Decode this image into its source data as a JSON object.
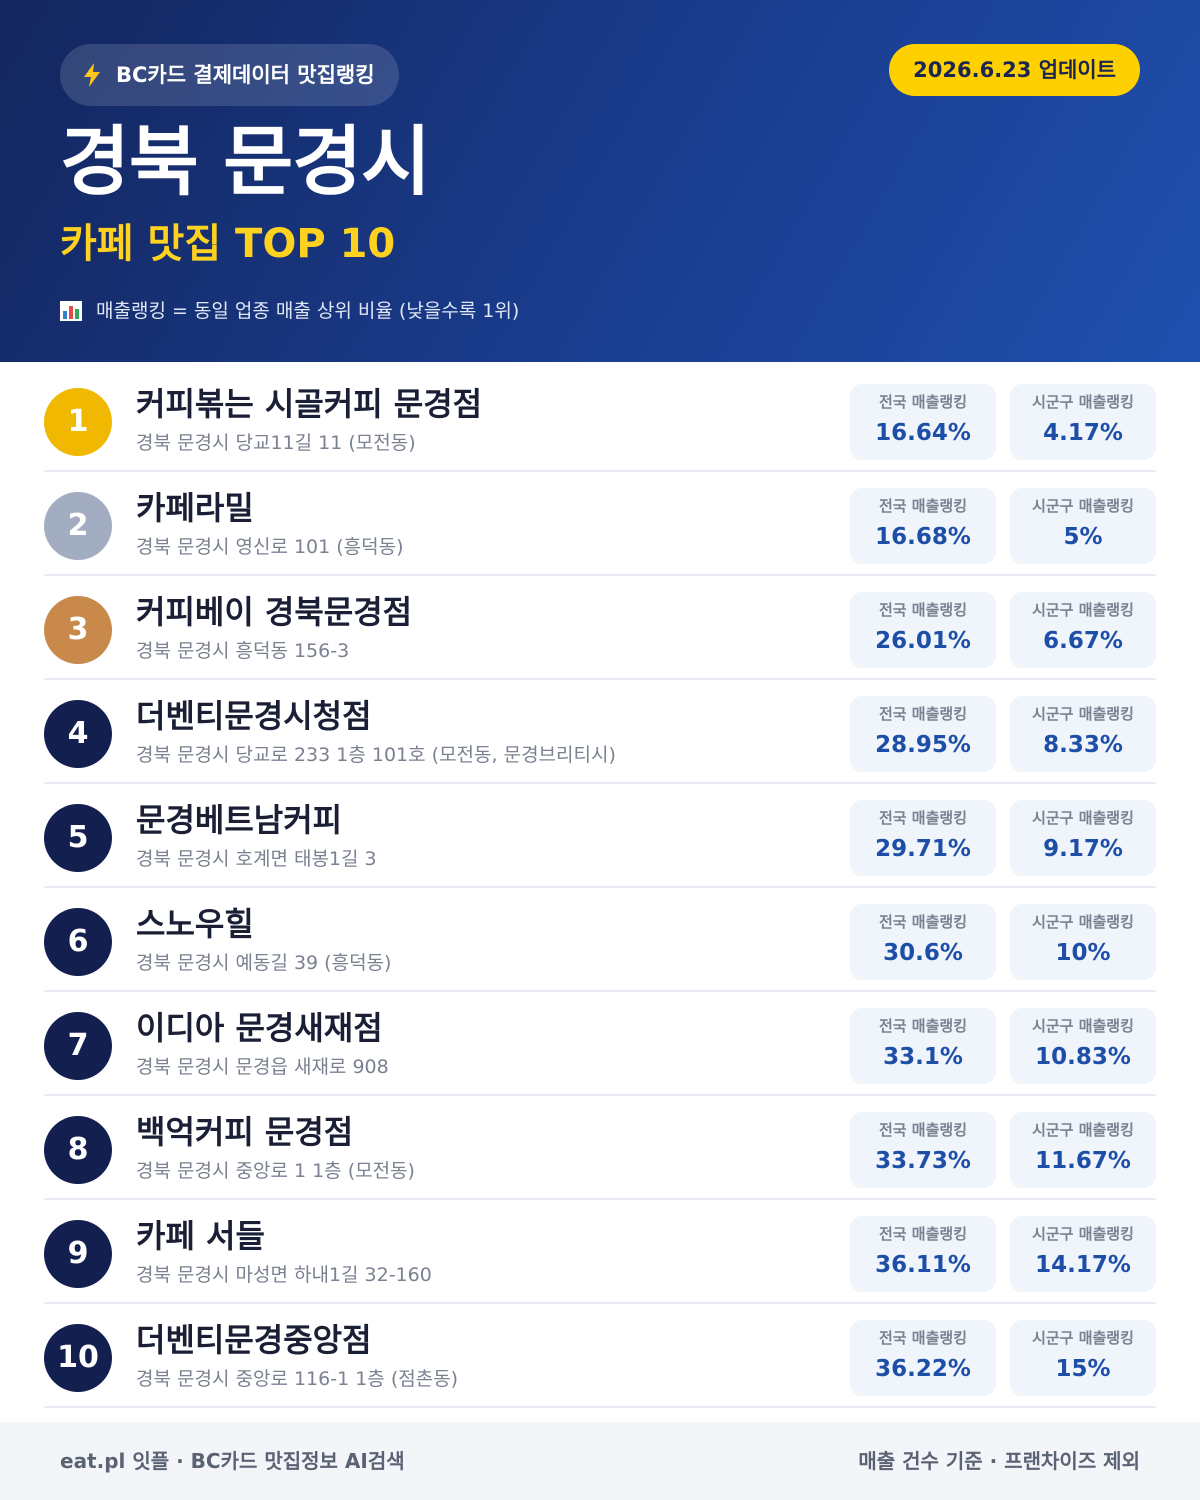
{
  "header": {
    "badge": "BC카드 결제데이터 맛집랭킹",
    "date": "2026.6.23 업데이트",
    "title": "경북 문경시",
    "subtitle": "카페 맛집 TOP 10",
    "note": "매출랭킹 = 동일 업종 매출 상위 비율 (낮을수록 1위)"
  },
  "labels": {
    "national": "전국 매출랭킹",
    "local": "시군구 매출랭킹"
  },
  "items": [
    {
      "rank": 1,
      "name": "커피볶는 시골커피 문경점",
      "address": "경북 문경시 당교11길 11 (모전동)",
      "national": "16.64%",
      "local": "4.17%"
    },
    {
      "rank": 2,
      "name": "카페라밀",
      "address": "경북 문경시 영신로 101 (흥덕동)",
      "national": "16.68%",
      "local": "5%"
    },
    {
      "rank": 3,
      "name": "커피베이 경북문경점",
      "address": "경북 문경시 흥덕동 156-3",
      "national": "26.01%",
      "local": "6.67%"
    },
    {
      "rank": 4,
      "name": "더벤티문경시청점",
      "address": "경북 문경시 당교로 233 1층 101호 (모전동, 문경브리티시)",
      "national": "28.95%",
      "local": "8.33%"
    },
    {
      "rank": 5,
      "name": "문경베트남커피",
      "address": "경북 문경시 호계면 태봉1길 3",
      "national": "29.71%",
      "local": "9.17%"
    },
    {
      "rank": 6,
      "name": "스노우힐",
      "address": "경북 문경시 예동길 39 (흥덕동)",
      "national": "30.6%",
      "local": "10%"
    },
    {
      "rank": 7,
      "name": "이디아 문경새재점",
      "address": "경북 문경시 문경읍 새재로 908",
      "national": "33.1%",
      "local": "10.83%"
    },
    {
      "rank": 8,
      "name": "백억커피 문경점",
      "address": "경북 문경시 중앙로 1 1층 (모전동)",
      "national": "33.73%",
      "local": "11.67%"
    },
    {
      "rank": 9,
      "name": "카페 서들",
      "address": "경북 문경시 마성면 하내1길 32-160",
      "national": "36.11%",
      "local": "14.17%"
    },
    {
      "rank": 10,
      "name": "더벤티문경중앙점",
      "address": "경북 문경시 중앙로 116-1 1층 (점촌동)",
      "national": "36.22%",
      "local": "15%"
    }
  ],
  "footer": {
    "left": "eat.pl 잇플 · BC카드 맛집정보 AI검색",
    "right": "매출 건수 기준 · 프랜차이즈 제외"
  }
}
